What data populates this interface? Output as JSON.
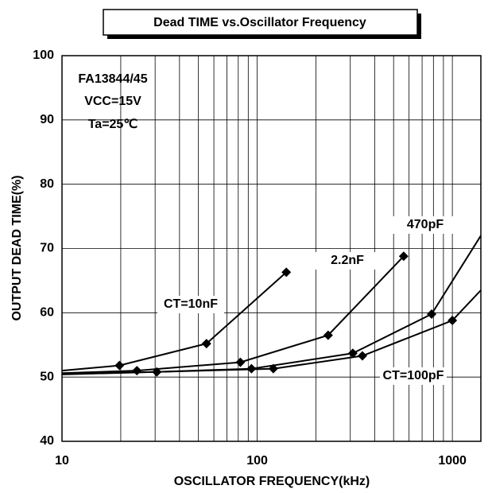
{
  "chart_data": {
    "type": "line",
    "title": "Dead TIME vs.Oscillator Frequency",
    "xlabel": "OSCILLATOR FREQUENCY(kHz)",
    "ylabel": "OUTPUT DEAD TIME(%)",
    "annotations": [
      "FA13844/45",
      "VCC=15V",
      "Ta=25℃"
    ],
    "xscale": "log",
    "xlim": [
      10,
      1400
    ],
    "ylim": [
      40,
      100
    ],
    "xticks": [
      10,
      100,
      1000
    ],
    "xminorticks": [
      20,
      30,
      40,
      50,
      60,
      70,
      80,
      90,
      200,
      300,
      400,
      500,
      600,
      700,
      800,
      900
    ],
    "yticks": [
      40,
      50,
      60,
      70,
      80,
      90,
      100
    ],
    "grid": true,
    "series": [
      {
        "name": "CT=10nF",
        "color": "#000000",
        "x": [
          10,
          19.7,
          55,
          141
        ],
        "values": [
          51.0,
          51.8,
          55.2,
          66.3
        ]
      },
      {
        "name": "2.2nF",
        "color": "#000000",
        "x": [
          10,
          24.2,
          82,
          231,
          563
        ],
        "values": [
          50.6,
          51.0,
          52.3,
          56.5,
          68.8
        ]
      },
      {
        "name": "470pF",
        "color": "#000000",
        "x": [
          10,
          30.6,
          93.5,
          309,
          783,
          1400
        ],
        "values": [
          50.5,
          50.8,
          51.3,
          53.7,
          59.8,
          72
        ]
      },
      {
        "name": "CT=100pF",
        "color": "#000000",
        "x": [
          10,
          121,
          346,
          1000,
          1400
        ],
        "values": [
          50.4,
          51.3,
          53.3,
          58.8,
          63.5
        ]
      }
    ]
  }
}
